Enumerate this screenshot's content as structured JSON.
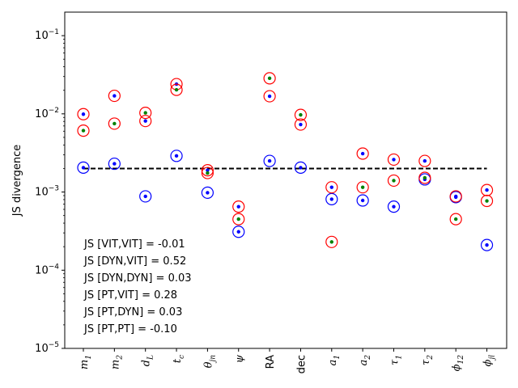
{
  "chart_data": {
    "type": "scatter",
    "title": "",
    "xlabel": "",
    "ylabel": "JS divergence",
    "yscale": "log",
    "ylim": [
      1e-05,
      0.2
    ],
    "y_ticks": [
      {
        "value": 1e-05,
        "base": "10",
        "exp": "−5"
      },
      {
        "value": 0.0001,
        "base": "10",
        "exp": "−4"
      },
      {
        "value": 0.001,
        "base": "10",
        "exp": "−3"
      },
      {
        "value": 0.01,
        "base": "10",
        "exp": "−2"
      },
      {
        "value": 0.1,
        "base": "10",
        "exp": "−1"
      }
    ],
    "categories": [
      {
        "base": "m",
        "sub": "1",
        "italic": true
      },
      {
        "base": "m",
        "sub": "2",
        "italic": true
      },
      {
        "base": "d",
        "sub": "L",
        "italic": true
      },
      {
        "base": "t",
        "sub": "c",
        "italic": true
      },
      {
        "base": "θ",
        "sub": "jn",
        "italic": true
      },
      {
        "base": "ψ",
        "sub": "",
        "italic": true
      },
      {
        "base": "RA",
        "sub": "",
        "italic": false
      },
      {
        "base": "dec",
        "sub": "",
        "italic": false
      },
      {
        "base": "a",
        "sub": "1",
        "italic": true
      },
      {
        "base": "a",
        "sub": "2",
        "italic": true
      },
      {
        "base": "τ",
        "sub": "1",
        "italic": true
      },
      {
        "base": "τ",
        "sub": "2",
        "italic": true
      },
      {
        "base": "ϕ",
        "sub": "12",
        "italic": true
      },
      {
        "base": "ϕ",
        "sub": "jl",
        "italic": true
      }
    ],
    "series": [
      {
        "ring": "#0000ff",
        "dot": "#0000ff",
        "values": [
          0.00205,
          0.0023,
          0.00088,
          0.0029,
          0.00098,
          0.00031,
          0.0025,
          0.00205,
          0.00081,
          0.00078,
          0.00065,
          0.00145,
          0.00086,
          0.00021
        ]
      },
      {
        "ring": "#ff0000",
        "dot": "#0000ff",
        "values": [
          0.0099,
          0.017,
          0.0081,
          0.024,
          0.0019,
          0.00065,
          0.0168,
          0.0073,
          0.00115,
          0.0031,
          0.0026,
          0.0025,
          0.00088,
          0.00106
        ]
      },
      {
        "ring": "#ff0000",
        "dot": "#008000",
        "values": [
          0.0061,
          0.0075,
          0.0103,
          0.0203,
          0.00175,
          0.00045,
          0.0285,
          0.0097,
          0.00023,
          0.00115,
          0.0014,
          0.00152,
          0.00045,
          0.00077
        ]
      }
    ],
    "threshold": {
      "value": 0.002,
      "style": "dashed",
      "color": "#000000"
    },
    "annotations": [
      "JS [VIT,VIT] = -0.01",
      "JS [DYN,VIT] = 0.52",
      "JS [DYN,DYN] = 0.03",
      "JS [PT,VIT] = 0.28",
      "JS [PT,DYN] = 0.03",
      "JS [PT,PT] = -0.10"
    ],
    "grid": false,
    "legend": "none"
  }
}
